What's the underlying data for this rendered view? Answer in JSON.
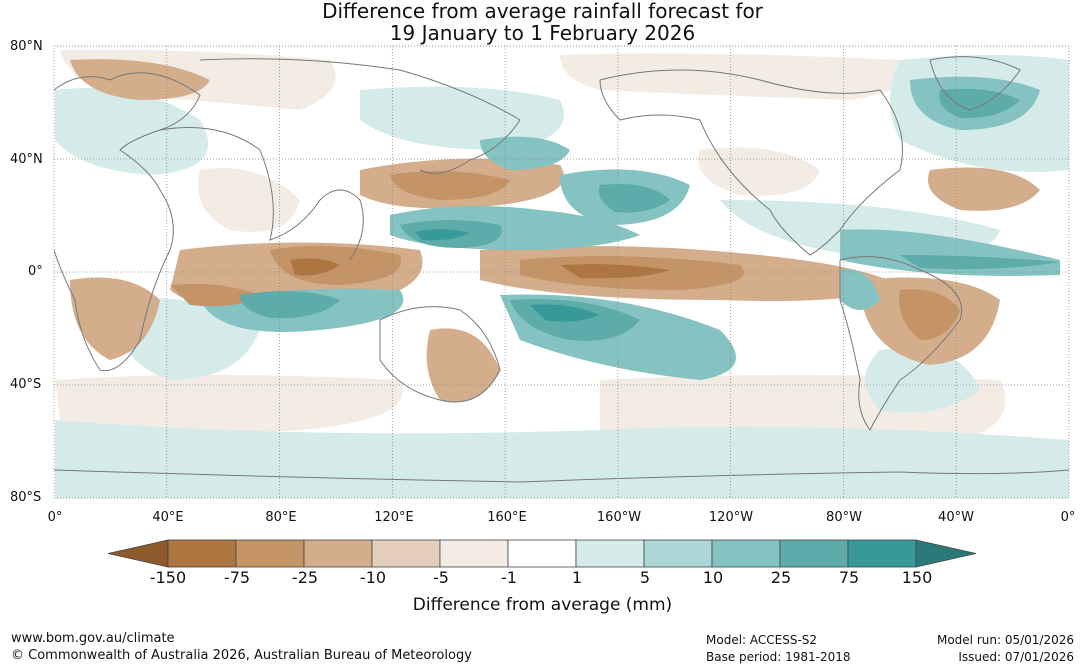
{
  "title": {
    "line1": "Difference from average rainfall forecast for",
    "line2": "19 January to 1 February 2026"
  },
  "map": {
    "y_axis_labels": [
      "80°N",
      "40°N",
      "0°",
      "40°S",
      "80°S"
    ],
    "x_axis_labels": [
      "0°",
      "40°E",
      "80°E",
      "120°E",
      "160°E",
      "160°W",
      "120°W",
      "80°W",
      "40°W",
      "0°"
    ],
    "lat_range": [
      -80,
      80
    ],
    "lon_range": [
      0,
      360
    ],
    "gridlines": true,
    "gridline_style": "dotted",
    "ocean_color": "#ffffff",
    "coastline_color": "#777777"
  },
  "colorbar": {
    "title": "Difference from average (mm)",
    "tick_labels": [
      "-150",
      "-75",
      "-25",
      "-10",
      "-5",
      "-1",
      "1",
      "5",
      "10",
      "25",
      "75",
      "150"
    ],
    "colors": [
      "#8d5a2b",
      "#ad753f",
      "#c49467",
      "#d4ae8c",
      "#e4cfbc",
      "#f3ece4",
      "#ffffff",
      "#d5ebea",
      "#acd7d6",
      "#84c3c2",
      "#5eacaa",
      "#37999a",
      "#2a7a7a"
    ],
    "extend": "both"
  },
  "footer": {
    "website": "www.bom.gov.au/climate",
    "copyright": "© Commonwealth of Australia 2026, Australian Bureau of Meteorology",
    "model": "Model: ACCESS-S2",
    "base_period": "Base period: 1981-2018",
    "model_run": "Model run: 05/01/2026",
    "issued": "Issued: 07/01/2026"
  }
}
